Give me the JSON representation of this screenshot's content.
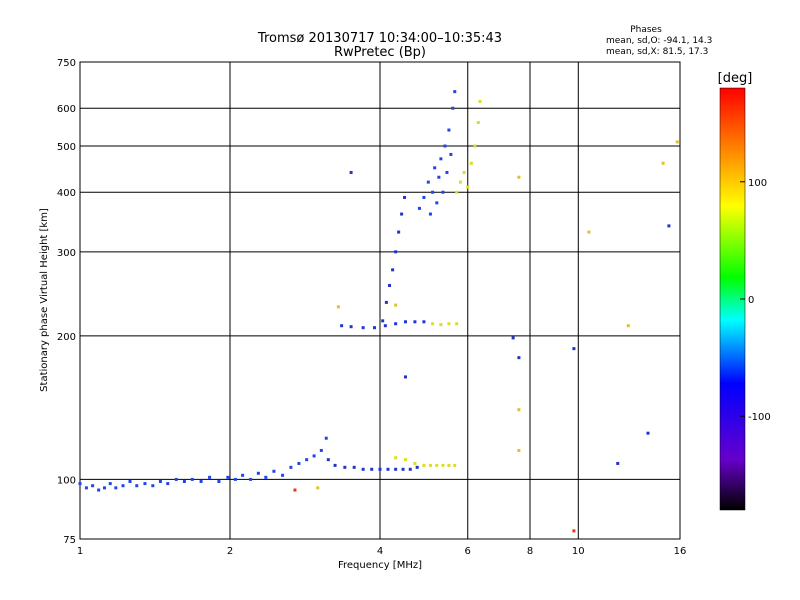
{
  "chart_data": {
    "type": "scatter",
    "title": "Tromsø 20130717 10:34:00–10:35:43",
    "subtitle": "RwPretec (Bp)",
    "xlabel": "Frequency [MHz]",
    "ylabel": "Stationary phase Virtual Height [km]",
    "xscale": "log",
    "yscale": "log",
    "xlim": [
      1,
      16
    ],
    "ylim": [
      75,
      750
    ],
    "xticks": [
      1,
      2,
      4,
      6,
      8,
      10,
      16
    ],
    "yticks": [
      75,
      100,
      200,
      300,
      400,
      500,
      600,
      750
    ],
    "grid": true,
    "phases": {
      "title": "Phases",
      "line1": "mean, sd,O: -94.1, 14.3",
      "line2": "mean, sd,X:  81.5, 17.3"
    },
    "colorbar": {
      "label": "[deg]",
      "ticks": [
        100,
        0,
        -100
      ],
      "range": [
        -180,
        180
      ],
      "colors": [
        "#000000",
        "#8000ff",
        "#0000ff",
        "#00ffff",
        "#00ff00",
        "#ffff00",
        "#ff8000",
        "#ff0000"
      ]
    },
    "series": [
      {
        "color": "#2244ee",
        "points": [
          [
            1.0,
            98
          ],
          [
            1.03,
            96
          ],
          [
            1.06,
            97
          ],
          [
            1.09,
            95
          ],
          [
            1.12,
            96
          ],
          [
            1.15,
            98
          ],
          [
            1.18,
            96
          ],
          [
            1.22,
            97
          ],
          [
            1.26,
            99
          ],
          [
            1.3,
            97
          ],
          [
            1.35,
            98
          ],
          [
            1.4,
            97
          ],
          [
            1.45,
            99
          ],
          [
            1.5,
            98
          ],
          [
            1.56,
            100
          ],
          [
            1.62,
            99
          ],
          [
            1.68,
            100
          ],
          [
            1.75,
            99
          ],
          [
            1.82,
            101
          ],
          [
            1.9,
            99
          ],
          [
            1.98,
            101
          ],
          [
            2.05,
            100
          ],
          [
            2.12,
            102
          ],
          [
            2.2,
            100
          ],
          [
            2.28,
            103
          ],
          [
            2.36,
            101
          ],
          [
            2.45,
            104
          ],
          [
            2.55,
            102
          ],
          [
            2.65,
            106
          ],
          [
            2.75,
            108
          ],
          [
            2.85,
            110
          ],
          [
            2.95,
            112
          ],
          [
            3.05,
            115
          ],
          [
            3.12,
            122
          ]
        ]
      },
      {
        "color": "#2233cc",
        "points": [
          [
            3.15,
            110
          ],
          [
            3.25,
            107
          ],
          [
            3.4,
            106
          ],
          [
            3.55,
            106
          ],
          [
            3.7,
            105
          ],
          [
            3.85,
            105
          ],
          [
            4.0,
            105
          ],
          [
            4.15,
            105
          ],
          [
            4.3,
            105
          ],
          [
            4.45,
            105
          ],
          [
            4.6,
            105
          ],
          [
            4.75,
            106
          ]
        ]
      },
      {
        "color": "#dddd22",
        "points": [
          [
            4.3,
            111
          ],
          [
            4.5,
            110
          ],
          [
            4.7,
            108
          ],
          [
            4.9,
            107
          ],
          [
            5.05,
            107
          ],
          [
            5.2,
            107
          ],
          [
            5.35,
            107
          ],
          [
            5.5,
            107
          ],
          [
            5.65,
            107
          ]
        ]
      },
      {
        "color": "#2233dd",
        "points": [
          [
            3.35,
            210
          ],
          [
            3.5,
            209
          ],
          [
            3.7,
            208
          ],
          [
            3.9,
            208
          ],
          [
            4.1,
            210
          ],
          [
            4.3,
            212
          ],
          [
            4.5,
            214
          ],
          [
            4.7,
            214
          ],
          [
            4.9,
            214
          ]
        ]
      },
      {
        "color": "#dddd22",
        "points": [
          [
            5.1,
            212
          ],
          [
            5.3,
            211
          ],
          [
            5.5,
            212
          ],
          [
            5.7,
            212
          ]
        ]
      },
      {
        "color": "#2233cc",
        "points": [
          [
            4.05,
            215
          ],
          [
            4.12,
            235
          ],
          [
            4.18,
            255
          ],
          [
            4.24,
            275
          ],
          [
            4.3,
            300
          ],
          [
            4.36,
            330
          ],
          [
            4.42,
            360
          ],
          [
            4.48,
            390
          ]
        ]
      },
      {
        "color": "#2244ee",
        "points": [
          [
            4.8,
            370
          ],
          [
            4.9,
            390
          ],
          [
            5.0,
            420
          ],
          [
            5.05,
            360
          ],
          [
            5.1,
            400
          ],
          [
            5.15,
            450
          ],
          [
            5.2,
            380
          ],
          [
            5.25,
            430
          ],
          [
            5.3,
            470
          ],
          [
            5.35,
            400
          ],
          [
            5.4,
            500
          ],
          [
            5.45,
            440
          ],
          [
            5.5,
            540
          ],
          [
            5.55,
            480
          ],
          [
            5.6,
            600
          ],
          [
            5.65,
            650
          ]
        ]
      },
      {
        "color": "#dddd22",
        "points": [
          [
            5.7,
            400
          ],
          [
            5.8,
            420
          ],
          [
            5.9,
            440
          ],
          [
            6.0,
            410
          ],
          [
            6.1,
            460
          ],
          [
            6.2,
            500
          ],
          [
            6.3,
            560
          ],
          [
            6.35,
            620
          ]
        ]
      },
      {
        "color": "#2233cc",
        "points": [
          [
            3.5,
            440
          ],
          [
            4.5,
            164
          ],
          [
            7.4,
            198
          ],
          [
            7.6,
            180
          ],
          [
            12.0,
            108
          ],
          [
            13.8,
            125
          ],
          [
            15.2,
            340
          ],
          [
            9.8,
            188
          ]
        ]
      },
      {
        "color": "#e0c030",
        "points": [
          [
            3.0,
            96
          ],
          [
            3.3,
            230
          ],
          [
            4.3,
            232
          ],
          [
            7.6,
            430
          ],
          [
            7.6,
            140
          ],
          [
            7.6,
            115
          ],
          [
            10.5,
            330
          ],
          [
            12.6,
            210
          ],
          [
            14.8,
            460
          ],
          [
            15.8,
            510
          ]
        ]
      },
      {
        "color": "#ee3311",
        "points": [
          [
            9.8,
            78
          ],
          [
            2.7,
            95
          ]
        ]
      }
    ]
  }
}
